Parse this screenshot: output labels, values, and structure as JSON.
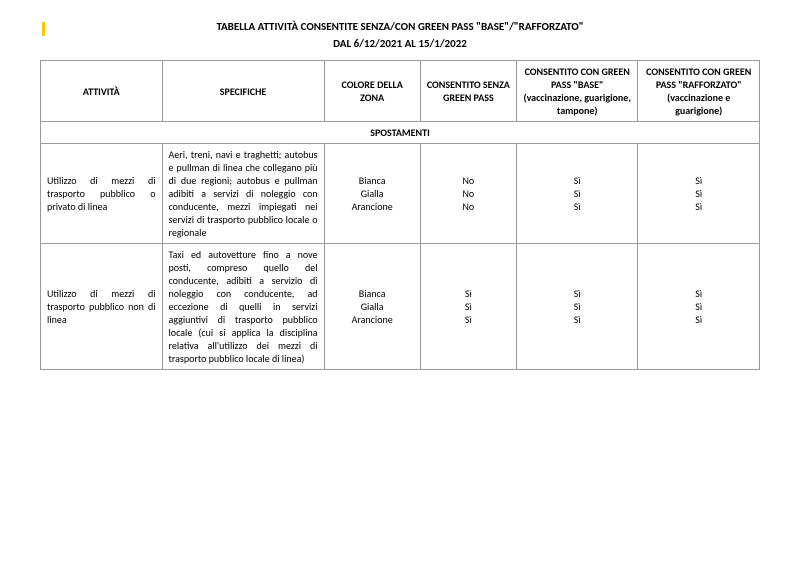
{
  "title_line1": "TABELLA ATTIVITÀ CONSENTITE SENZA/CON GREEN PASS \"BASE\"/\"RAFFORZATO\"",
  "title_line2": "DAL 6/12/2021 AL 15/1/2022",
  "headers": {
    "attivita": "ATTIVITÀ",
    "specifiche": "SPECIFICHE",
    "colore": "COLORE DELLA ZONA",
    "senza": "CONSENTITO SENZA GREEN PASS",
    "base": "CONSENTITO CON GREEN PASS \"BASE\" (vaccinazione, guarigione, tampone)",
    "raff": "CONSENTITO CON GREEN PASS \"RAFFORZATO\" (vaccinazione e guarigione)"
  },
  "section1": "SPOSTAMENTI",
  "rows": [
    {
      "attivita": "Utilizzo di mezzi di trasporto pubblico o privato di linea",
      "specifiche": "Aeri, treni, navi e traghetti; autobus e pullman di linea che collegano più di due regioni; autobus e pullman adibiti a servizi di noleggio con conducente, mezzi impiegati nei servizi di trasporto pubblico locale o regionale",
      "zone": "Bianca\nGialla\nArancione",
      "senza": "No\nNo\nNo",
      "base": "Sì\nSì\nSì",
      "raff": "Sì\nSì\nSì"
    },
    {
      "attivita": "Utilizzo di mezzi di trasporto pubblico non di linea",
      "specifiche": "Taxi ed autovetture fino a nove posti, compreso quello del conducente, adibiti a servizio di noleggio con conducente, ad eccezione di quelli in servizi aggiuntivi di trasporto pubblico locale (cui si applica la disciplina relativa all'utilizzo dei mezzi di trasporto pubblico locale di linea)",
      "zone": "Bianca\nGialla\nArancione",
      "senza": "Sì\nSì\nSì",
      "base": "Sì\nSì\nSì",
      "raff": "Sì\nSì\nSì"
    }
  ]
}
